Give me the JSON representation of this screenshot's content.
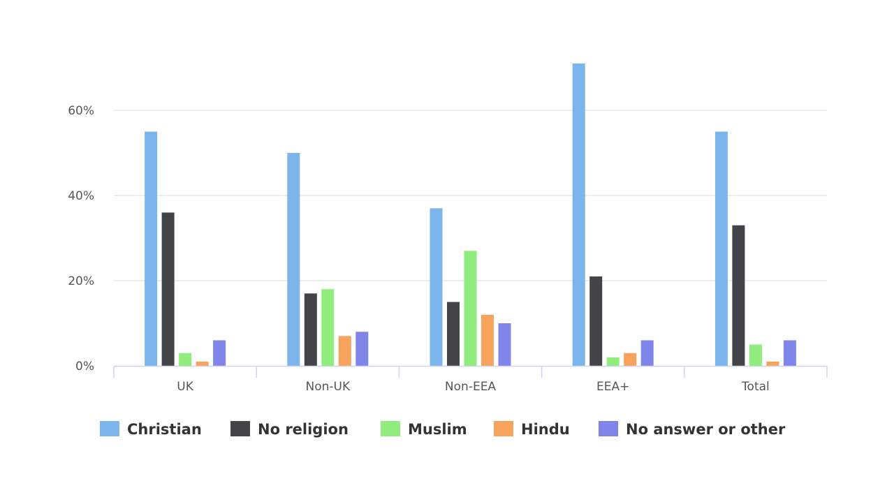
{
  "chart_data": {
    "type": "bar",
    "title": "",
    "xlabel": "",
    "ylabel": "",
    "ylim": [
      0,
      72
    ],
    "yticks": [
      0,
      20,
      40,
      60
    ],
    "ytick_labels": [
      "0%",
      "20%",
      "40%",
      "60%"
    ],
    "grid": true,
    "legend_position": "bottom",
    "categories": [
      "UK",
      "Non-UK",
      "Non-EEA",
      "EEA+",
      "Total"
    ],
    "series": [
      {
        "name": "Christian",
        "color": "#7cb5ec",
        "values": [
          55,
          50,
          37,
          71,
          55
        ]
      },
      {
        "name": "No religion",
        "color": "#434348",
        "values": [
          36,
          17,
          15,
          21,
          33
        ]
      },
      {
        "name": "Muslim",
        "color": "#90ed7d",
        "values": [
          3,
          18,
          27,
          2,
          5
        ]
      },
      {
        "name": "Hindu",
        "color": "#f7a35c",
        "values": [
          1,
          7,
          12,
          3,
          1
        ]
      },
      {
        "name": "No answer or other",
        "color": "#8085e9",
        "values": [
          6,
          8,
          10,
          6,
          6
        ]
      }
    ]
  }
}
